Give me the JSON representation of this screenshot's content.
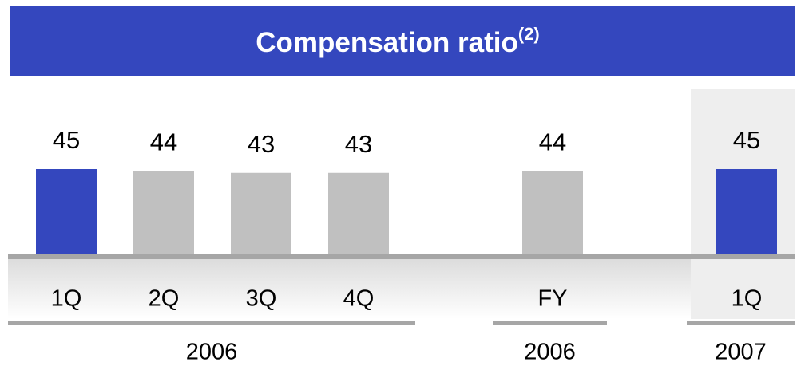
{
  "chart_data": {
    "type": "bar",
    "title": "Compensation ratio",
    "title_note": "(2)",
    "groups": [
      {
        "name": "2006",
        "categories": [
          "1Q",
          "2Q",
          "3Q",
          "4Q"
        ],
        "values": [
          45,
          44,
          43,
          43
        ],
        "colors": [
          "#3447be",
          "#c0c0c0",
          "#c0c0c0",
          "#c0c0c0"
        ]
      },
      {
        "name": "2006",
        "categories": [
          "FY"
        ],
        "values": [
          44
        ],
        "colors": [
          "#c0c0c0"
        ]
      },
      {
        "name": "2007",
        "categories": [
          "1Q"
        ],
        "values": [
          45
        ],
        "colors": [
          "#3447be"
        ]
      }
    ]
  }
}
